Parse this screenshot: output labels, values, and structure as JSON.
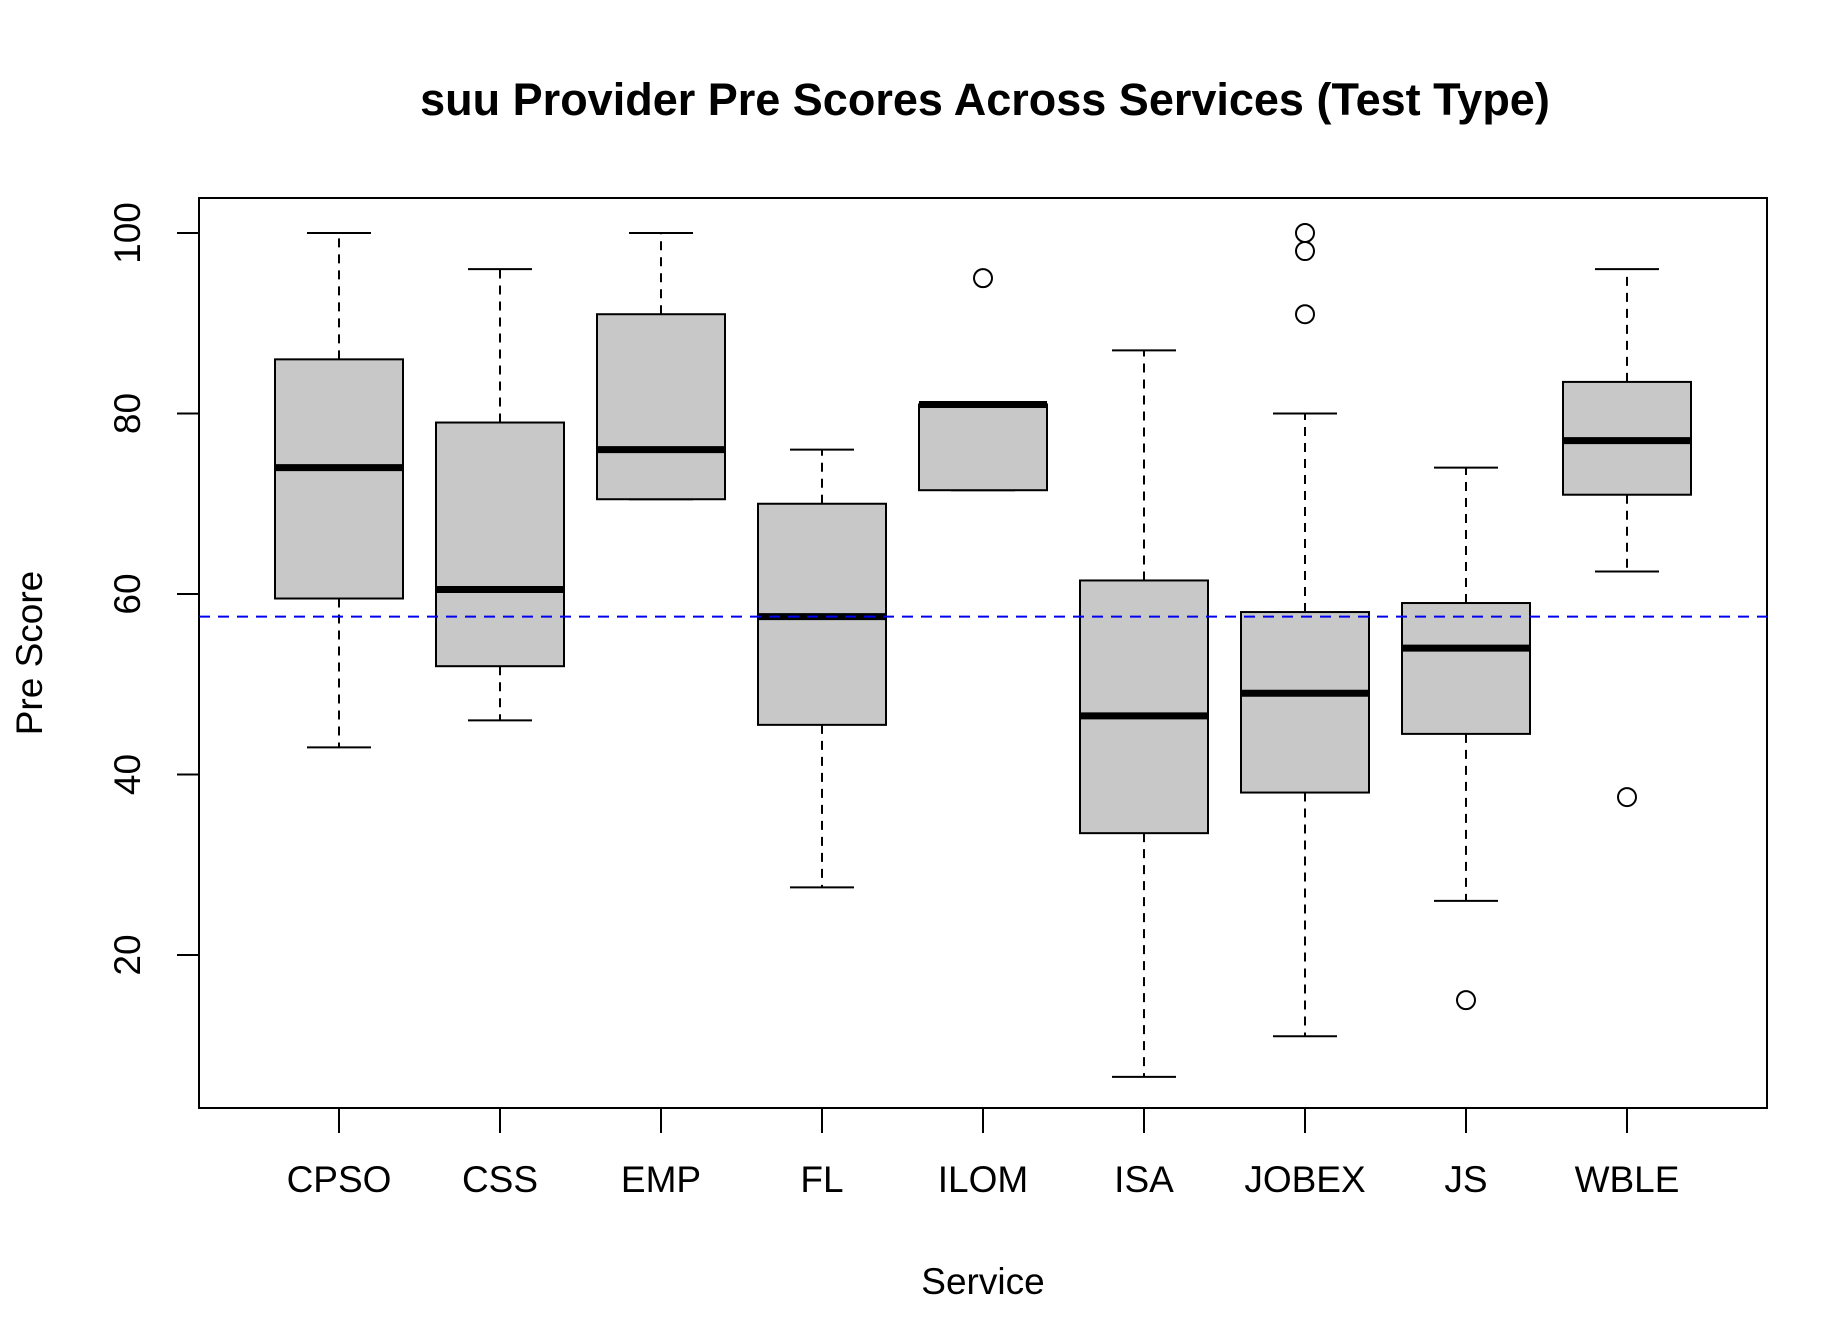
{
  "chart_data": {
    "type": "boxplot",
    "title": "suu Provider Pre Scores Across Services (Test Type)",
    "xlabel": "Service",
    "ylabel": "Pre Score",
    "ylim": [
      3,
      104
    ],
    "y_ticks": [
      20,
      40,
      60,
      80,
      100
    ],
    "y_tick_labels": [
      "20",
      "40",
      "60",
      "80",
      "100"
    ],
    "categories": [
      "CPSO",
      "CSS",
      "EMP",
      "FL",
      "ILOM",
      "ISA",
      "JOBEX",
      "JS",
      "WBLE"
    ],
    "boxes": [
      {
        "label": "CPSO",
        "whisker_low": 43,
        "q1": 59.5,
        "median": 74,
        "q3": 86,
        "whisker_high": 100,
        "outliers": []
      },
      {
        "label": "CSS",
        "whisker_low": 46,
        "q1": 52,
        "median": 60.5,
        "q3": 79,
        "whisker_high": 96,
        "outliers": []
      },
      {
        "label": "EMP",
        "whisker_low": 70.5,
        "q1": 70.5,
        "median": 76,
        "q3": 91,
        "whisker_high": 100,
        "outliers": []
      },
      {
        "label": "FL",
        "whisker_low": 27.5,
        "q1": 45.5,
        "median": 57.5,
        "q3": 70,
        "whisker_high": 76,
        "outliers": []
      },
      {
        "label": "ILOM",
        "whisker_low": 71.5,
        "q1": 71.5,
        "median": 81,
        "q3": 81,
        "whisker_high": 81,
        "outliers": [
          95
        ]
      },
      {
        "label": "ISA",
        "whisker_low": 6.5,
        "q1": 33.5,
        "median": 46.5,
        "q3": 61.5,
        "whisker_high": 87,
        "outliers": []
      },
      {
        "label": "JOBEX",
        "whisker_low": 11,
        "q1": 38,
        "median": 49,
        "q3": 58,
        "whisker_high": 80,
        "outliers": [
          91,
          98,
          100
        ]
      },
      {
        "label": "JS",
        "whisker_low": 26,
        "q1": 44.5,
        "median": 54,
        "q3": 59,
        "whisker_high": 74,
        "outliers": [
          15
        ]
      },
      {
        "label": "WBLE",
        "whisker_low": 62.5,
        "q1": 71,
        "median": 77,
        "q3": 83.5,
        "whisker_high": 96,
        "outliers": [
          37.5
        ]
      }
    ],
    "reference_line": {
      "y": 57.5,
      "style": "dashed",
      "color": "#0000ee"
    },
    "box_fill": "#c8c8c8",
    "grid": false,
    "legend": "none"
  }
}
